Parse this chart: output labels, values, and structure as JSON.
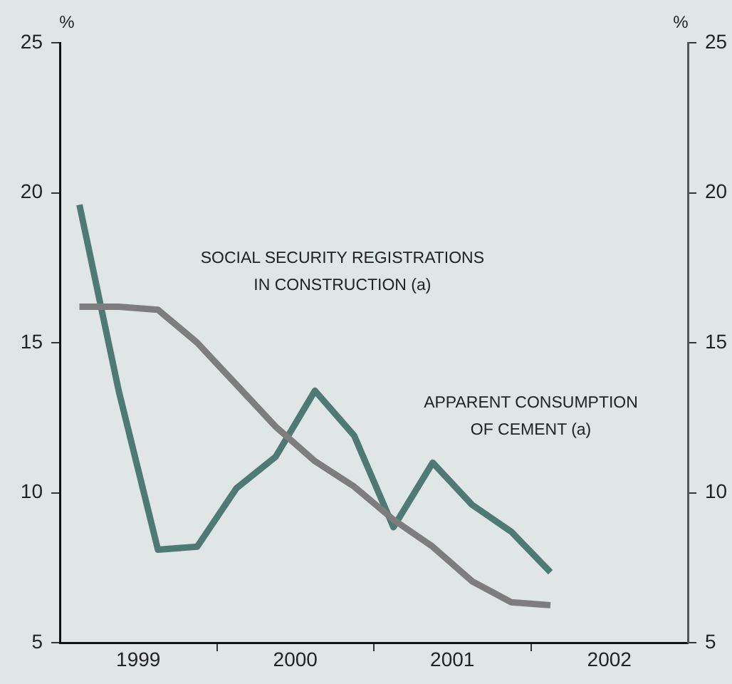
{
  "chart_data": {
    "type": "line",
    "ylabel": "%",
    "y2label": "%",
    "x": [
      1999.125,
      1999.375,
      1999.625,
      1999.875,
      2000.125,
      2000.375,
      2000.625,
      2000.875,
      2001.125,
      2001.375,
      2001.625,
      2001.875,
      2002.125
    ],
    "series": [
      {
        "name": "SOCIAL SECURITY REGISTRATIONS\nIN CONSTRUCTION (a)",
        "color": "#7d7d7d",
        "values": [
          16.2,
          16.2,
          16.1,
          15.0,
          13.6,
          12.2,
          11.05,
          10.2,
          9.1,
          8.2,
          7.05,
          6.35,
          6.25
        ]
      },
      {
        "name": "APPARENT CONSUMPTION\nOF CEMENT (a)",
        "color": "#4e7a73",
        "values": [
          19.6,
          13.4,
          8.1,
          8.2,
          10.15,
          11.2,
          13.4,
          11.9,
          8.85,
          11.0,
          9.6,
          8.7,
          7.35
        ]
      }
    ],
    "xlim": [
      1999,
      2003
    ],
    "xticks": [
      {
        "value": 1999.5,
        "label": "1999"
      },
      {
        "value": 2000,
        "label": null
      },
      {
        "value": 2000.5,
        "label": "2000"
      },
      {
        "value": 2001,
        "label": null
      },
      {
        "value": 2001.5,
        "label": "2001"
      },
      {
        "value": 2002,
        "label": null
      },
      {
        "value": 2002.5,
        "label": "2002"
      }
    ],
    "ylim": [
      5,
      25
    ],
    "yticks": [
      5,
      10,
      15,
      20,
      25
    ],
    "y2lim": [
      5,
      25
    ],
    "y2ticks": [
      5,
      10,
      15,
      20,
      25
    ],
    "grid": false,
    "legend": false,
    "marker": "none",
    "line_style": "solid"
  }
}
